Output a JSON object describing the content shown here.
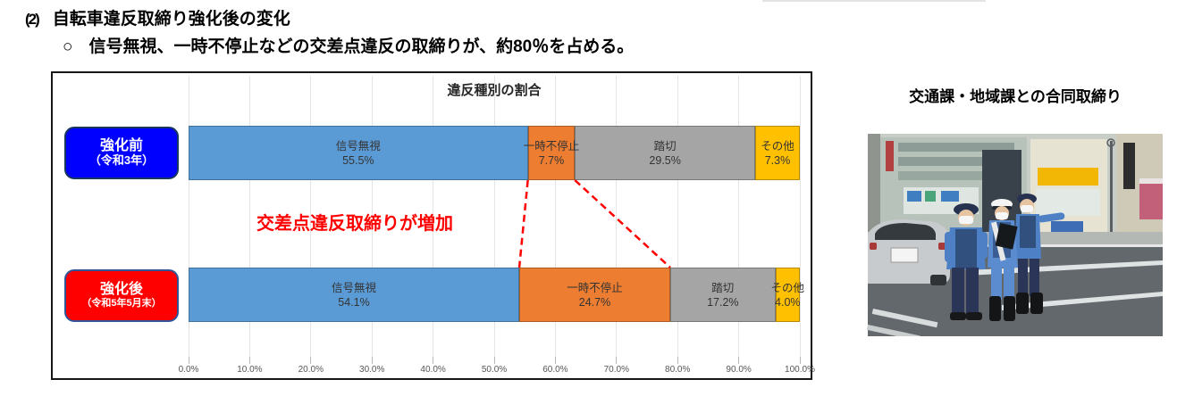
{
  "page": {
    "heading_number": "(2)",
    "heading_title": "自転車違反取締り強化後の変化",
    "bullet": "○",
    "subheading": "信号無視、一時不停止などの交差点違反の取締りが、約80％を占める。"
  },
  "chart_data": {
    "type": "bar",
    "variant": "horizontal-stacked-100pct",
    "title": "違反種別の割合",
    "categories": [
      "強化前（令和3年）",
      "強化後（令和5年5月末）"
    ],
    "series": [
      {
        "name": "信号無視",
        "color": "#5B9BD5",
        "values": [
          55.5,
          54.1
        ]
      },
      {
        "name": "一時不停止",
        "color": "#ED7D31",
        "values": [
          7.7,
          24.7
        ]
      },
      {
        "name": "踏切",
        "color": "#A5A5A5",
        "values": [
          29.5,
          17.2
        ]
      },
      {
        "name": "その他",
        "color": "#FFC000",
        "values": [
          7.3,
          4.0
        ]
      }
    ],
    "x_ticks": [
      "0.0%",
      "10.0%",
      "20.0%",
      "30.0%",
      "40.0%",
      "50.0%",
      "60.0%",
      "70.0%",
      "80.0%",
      "90.0%",
      "100.0%"
    ],
    "xlim": [
      0,
      100
    ],
    "grid": true,
    "annotation": {
      "text": "交差点違反取締りが増加",
      "color": "#FF0000"
    },
    "connector": {
      "series_index": 1,
      "color": "#FF0000",
      "style": "dashed"
    }
  },
  "row_labels": [
    {
      "title": "強化前",
      "subtitle": "（令和3年）",
      "bg": "#0000FF",
      "border": "#17375E"
    },
    {
      "title": "強化後",
      "subtitle": "（令和5年5月末）",
      "bg": "#FF0000",
      "border": "#2F5597"
    }
  ],
  "photo": {
    "caption": "交通課・地域課との合同取締り"
  }
}
